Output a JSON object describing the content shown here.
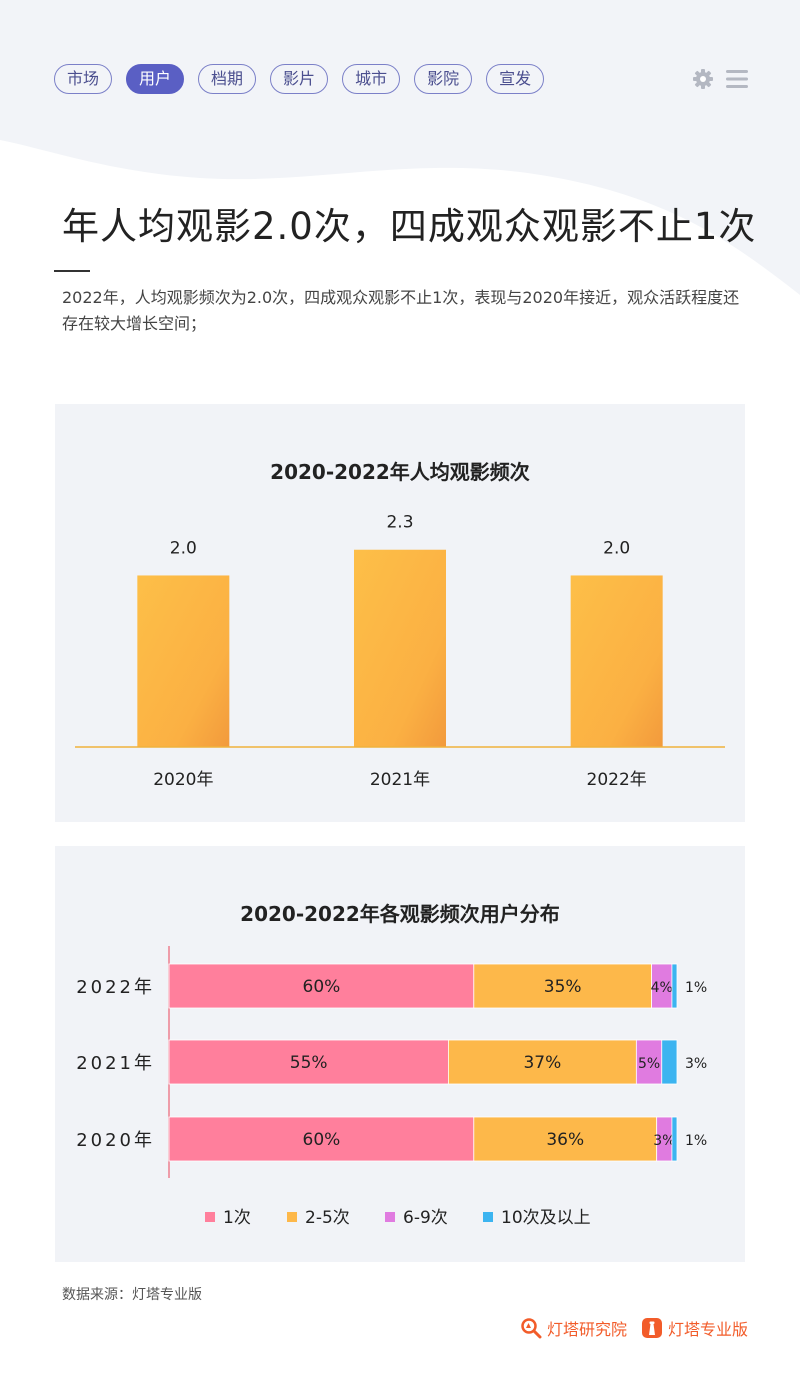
{
  "nav": {
    "tabs": [
      {
        "label": "市场",
        "active": false
      },
      {
        "label": "用户",
        "active": true
      },
      {
        "label": "档期",
        "active": false
      },
      {
        "label": "影片",
        "active": false
      },
      {
        "label": "城市",
        "active": false
      },
      {
        "label": "影院",
        "active": false
      },
      {
        "label": "宣发",
        "active": false
      }
    ],
    "icons": [
      "gear-icon",
      "menu-icon"
    ]
  },
  "headline": "年人均观影2.0次，四成观众观影不止1次",
  "description": "2022年，人均观影频次为2.0次，四成观众观影不止1次，表现与2020年接近，观众活跃程度还存在较大增长空间；",
  "chart_data": [
    {
      "type": "bar",
      "title": "2020-2022年人均观影频次",
      "categories": [
        "2020年",
        "2021年",
        "2022年"
      ],
      "values": [
        2.0,
        2.3,
        2.0
      ],
      "value_labels": [
        "2.0",
        "2.3",
        "2.0"
      ],
      "ylim": [
        0,
        2.6
      ],
      "grid": false,
      "colors": {
        "bar_top": "#fdbb45",
        "bar_bottom": "#f5a03a",
        "axis": "#f0b23c"
      }
    },
    {
      "type": "bar",
      "orientation": "horizontal",
      "stacked": true,
      "title": "2020-2022年各观影频次用户分布",
      "categories": [
        "2022年",
        "2021年",
        "2020年"
      ],
      "series": [
        {
          "name": "1次",
          "values": [
            60,
            55,
            60
          ],
          "labels": [
            "60%",
            "55%",
            "60%"
          ],
          "color": "#ff7f9c"
        },
        {
          "name": "2-5次",
          "values": [
            35,
            37,
            36
          ],
          "labels": [
            "35%",
            "37%",
            "36%"
          ],
          "color": "#fdb84a"
        },
        {
          "name": "6-9次",
          "values": [
            4,
            5,
            3
          ],
          "labels": [
            "4%",
            "5%",
            "3%"
          ],
          "color": "#e07be0"
        },
        {
          "name": "10次及以上",
          "values": [
            1,
            3,
            1
          ],
          "labels": [
            "1%",
            "3%",
            "1%"
          ],
          "color": "#3cb4f0"
        }
      ],
      "xlim": [
        0,
        100
      ],
      "legend_position": "bottom",
      "grid": false
    }
  ],
  "footer": {
    "source": "数据来源：灯塔专业版",
    "brand_left": "灯塔研究院",
    "brand_right": "灯塔专业版"
  },
  "colors": {
    "accent": "#5a5fc4",
    "brand": "#f25c2a",
    "panel_bg": "#f1f3f7"
  }
}
